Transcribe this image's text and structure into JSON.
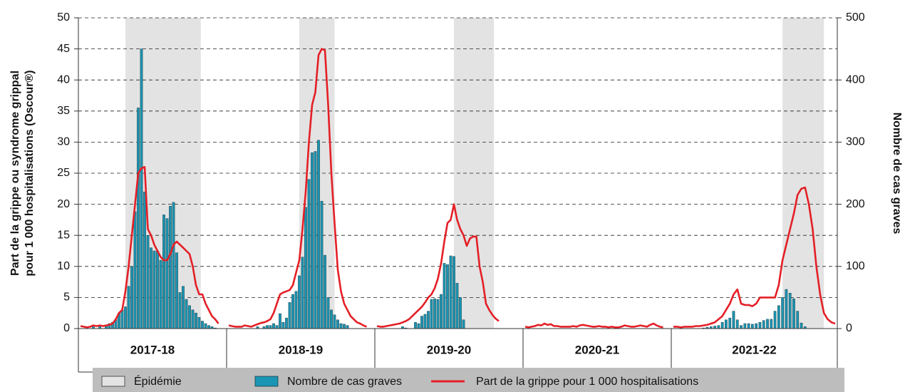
{
  "chart_data": {
    "type": "bar-line",
    "y_label": [
      "Part de la grippe ou syndrome grippal",
      "pour 1 000 hospitalisations (Oscour®)"
    ],
    "y2_label": "Nombre de cas graves",
    "ylim": [
      0,
      50
    ],
    "yticks": [
      0,
      5,
      10,
      15,
      20,
      25,
      30,
      35,
      40,
      45,
      50
    ],
    "y2lim": [
      0,
      500
    ],
    "y2ticks": [
      0,
      100,
      200,
      300,
      400,
      500
    ],
    "grid": true,
    "categories": [
      "2017-18",
      "2018-19",
      "2019-20",
      "2020-21",
      "2021-22"
    ],
    "epidemics": {
      "name": "Épidémie",
      "color": "#e3e3e3",
      "weeks": [
        [
          14,
          37.5
        ],
        [
          22,
          33
        ],
        [
          24,
          36.5
        ],
        null,
        [
          29,
          40
        ]
      ]
    },
    "series": [
      {
        "name": "Nombre de cas graves",
        "color": "#1a95b3",
        "axis": "y2",
        "values": [
          [
            0,
            0,
            0,
            0,
            5,
            0,
            5,
            0,
            5,
            8,
            10,
            15,
            25,
            30,
            35,
            68,
            100,
            188,
            355,
            450,
            220,
            150,
            130,
            125,
            125,
            110,
            183,
            177,
            197,
            203,
            122,
            58,
            68,
            47,
            37,
            30,
            25,
            18,
            12,
            8,
            5,
            3,
            1,
            0
          ],
          [
            0,
            0,
            0,
            0,
            0,
            0,
            0,
            0,
            0,
            3,
            0,
            3,
            5,
            5,
            8,
            5,
            24,
            10,
            17,
            42,
            55,
            60,
            85,
            115,
            195,
            240,
            283,
            285,
            303,
            205,
            118,
            50,
            30,
            22,
            14,
            8,
            7,
            5,
            0,
            0,
            0,
            0,
            0,
            0
          ],
          [
            0,
            0,
            0,
            0,
            0,
            0,
            0,
            0,
            3,
            1,
            0,
            0,
            10,
            8,
            20,
            23,
            28,
            47,
            48,
            47,
            55,
            105,
            103,
            117,
            116,
            73,
            50,
            14,
            0,
            0,
            0,
            0,
            0,
            0,
            0,
            0,
            0,
            0,
            0,
            0,
            0,
            0,
            0,
            0
          ],
          [
            0,
            0,
            0,
            0,
            0,
            0,
            0,
            0,
            0,
            0,
            0,
            0,
            0,
            0,
            0,
            0,
            0,
            0,
            0,
            0,
            0,
            0,
            0,
            0,
            0,
            0,
            0,
            0,
            0,
            0,
            0,
            0,
            0,
            0,
            0,
            0,
            0,
            0,
            0,
            0,
            0,
            0,
            0,
            0
          ],
          [
            0,
            0,
            0,
            0,
            0,
            0,
            0,
            0,
            1,
            2,
            3,
            4,
            5,
            10,
            14,
            17,
            28,
            14,
            5,
            8,
            8,
            7,
            8,
            10,
            13,
            15,
            15,
            28,
            37,
            50,
            63,
            57,
            48,
            28,
            9,
            3,
            0,
            0,
            0,
            0,
            0,
            0,
            0,
            0
          ]
        ]
      },
      {
        "name": "Part de la grippe pour 1 000 hospitalisations",
        "color": "#e41f26",
        "values": [
          [
            0.4,
            0.3,
            0.2,
            0.3,
            0.5,
            0.4,
            0.5,
            0.4,
            0.5,
            0.6,
            0.8,
            1.5,
            2.5,
            3,
            6,
            10,
            15,
            20,
            25,
            25.8,
            26,
            16,
            15,
            13.5,
            12.5,
            11.5,
            11,
            11,
            12,
            13.5,
            14,
            13.5,
            13,
            12.5,
            12,
            10,
            7,
            5.5,
            5.5,
            4,
            3,
            2,
            1.5,
            0.8
          ],
          [
            0.5,
            0.4,
            0.3,
            0.3,
            0.3,
            0.5,
            0.4,
            0.3,
            0.5,
            0.7,
            0.9,
            1,
            1.2,
            1.5,
            2.5,
            4,
            5.5,
            5.8,
            6,
            6.2,
            7,
            9,
            11,
            16,
            22,
            30,
            36,
            38,
            44,
            45,
            44.8,
            36,
            25,
            17,
            9.5,
            6,
            4,
            3,
            2,
            1.5,
            1,
            0.8,
            0.5,
            0.3
          ],
          [
            0.4,
            0.3,
            0.3,
            0.4,
            0.5,
            0.6,
            0.7,
            0.8,
            1,
            1.2,
            1.5,
            2,
            2.5,
            3,
            3.5,
            4.2,
            5,
            5.5,
            6.5,
            8,
            10.5,
            14,
            17,
            17.5,
            20,
            17.5,
            16,
            15,
            13.3,
            14.5,
            14.8,
            14.8,
            10,
            7.5,
            4,
            3,
            2.2,
            1.6,
            1.2,
            null,
            null,
            null,
            null,
            null
          ],
          [
            0.3,
            0.2,
            0.3,
            0.4,
            0.6,
            0.5,
            0.8,
            0.6,
            0.7,
            0.4,
            0.4,
            0.3,
            0.3,
            0.3,
            0.3,
            0.4,
            0.3,
            0.5,
            0.6,
            0.5,
            0.4,
            0.3,
            0.3,
            0.4,
            0.3,
            0.3,
            0.2,
            0.3,
            0.2,
            0.2,
            0.3,
            0.5,
            0.4,
            0.3,
            0.3,
            0.4,
            0.5,
            0.4,
            0.3,
            0.6,
            0.8,
            0.5,
            0.3,
            0.2
          ],
          [
            0.3,
            0.3,
            0.2,
            0.3,
            0.3,
            0.3,
            0.4,
            0.4,
            0.5,
            0.6,
            0.8,
            1,
            1.5,
            2,
            3,
            4,
            5.5,
            6.3,
            4,
            3.8,
            3.8,
            3.6,
            4,
            5,
            5,
            5,
            5,
            5,
            7,
            11,
            13.5,
            16,
            18.5,
            21.5,
            22.5,
            22.7,
            20,
            16,
            10,
            5.5,
            2.5,
            1.5,
            1,
            0.8
          ]
        ]
      }
    ]
  }
}
